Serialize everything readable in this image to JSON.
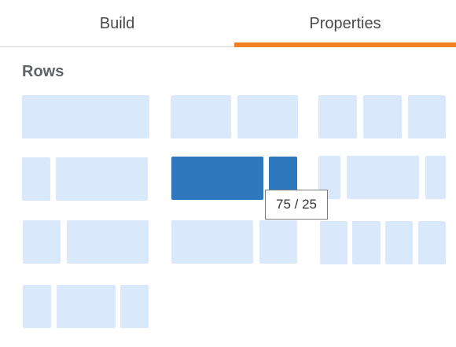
{
  "tabs": [
    {
      "label": "Build",
      "active": false
    },
    {
      "label": "Properties",
      "active": true
    }
  ],
  "accent_color": "#f08122",
  "section": {
    "title": "Rows"
  },
  "layouts": [
    {
      "id": "1-col",
      "cols": [
        100
      ]
    },
    {
      "id": "2-col-50-50",
      "cols": [
        50,
        50
      ]
    },
    {
      "id": "3-col",
      "cols": [
        33,
        33,
        33
      ]
    },
    {
      "id": "2-col-25-75",
      "cols": [
        25,
        75
      ]
    },
    {
      "id": "2-col-75-25",
      "cols": [
        75,
        25
      ],
      "selected": true
    },
    {
      "id": "3-col-16-66-16",
      "cols": [
        16,
        66,
        16
      ]
    },
    {
      "id": "2-col-33-66",
      "cols": [
        33,
        66
      ]
    },
    {
      "id": "2-col-66-33",
      "cols": [
        66,
        33
      ]
    },
    {
      "id": "4-col",
      "cols": [
        25,
        25,
        25,
        25
      ]
    },
    {
      "id": "3-col-25-50-25",
      "cols": [
        25,
        50,
        25
      ]
    }
  ],
  "tooltip": {
    "text": "75 / 25"
  },
  "colors": {
    "selected": "#2f78bd",
    "unselected": "#d9e8fa"
  }
}
